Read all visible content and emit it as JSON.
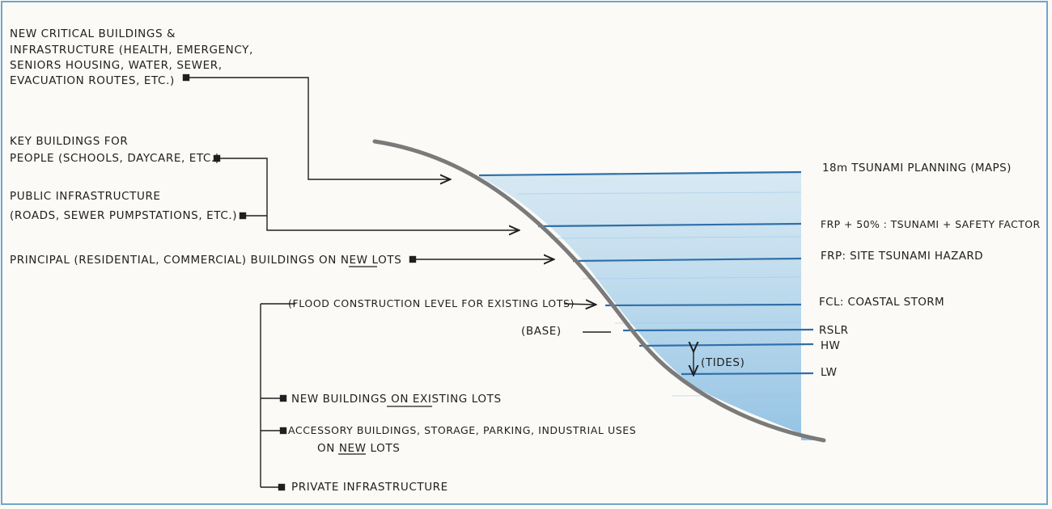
{
  "uses": {
    "critical": [
      "NEW CRITICAL BUILDINGS &",
      "INFRASTRUCTURE (HEALTH, EMERGENCY,",
      "SENIORS HOUSING, WATER, SEWER,",
      "EVACUATION ROUTES, ETC.)"
    ],
    "key": [
      "KEY BUILDINGS FOR",
      "PEOPLE (SCHOOLS, DAYCARE, ETC.)"
    ],
    "public": [
      "PUBLIC INFRASTRUCTURE",
      "(ROADS, SEWER PUMPSTATIONS, ETC.)"
    ],
    "principal": "PRINCIPAL (RESIDENTIAL, COMMERCIAL) BUILDINGS ON NEW LOTS",
    "fcl_existing": "(FLOOD CONSTRUCTION LEVEL FOR EXISTING LOTS)",
    "base": "(BASE)",
    "new_existing": "NEW BUILDINGS ON EXISTING LOTS",
    "accessory": [
      "ACCESSORY BUILDINGS, STORAGE, PARKING, INDUSTRIAL USES",
      "ON NEW LOTS"
    ],
    "private": "PRIVATE INFRASTRUCTURE"
  },
  "levels": {
    "tsunami18": "18m TSUNAMI PLANNING (MAPS)",
    "frp50": "FRP + 50% : TSUNAMI + SAFETY FACTOR",
    "frp": "FRP: SITE TSUNAMI HAZARD",
    "fcl": "FCL: COASTAL STORM",
    "rslr": "RSLR",
    "hw": "HW",
    "lw": "LW",
    "tides": "(TIDES)"
  },
  "colors": {
    "water": "#a9d0ea",
    "water_line": "#2f6fa8",
    "ground": "#7a7a7a",
    "ink": "#1f1f1f",
    "frame": "#6ea6cf"
  }
}
